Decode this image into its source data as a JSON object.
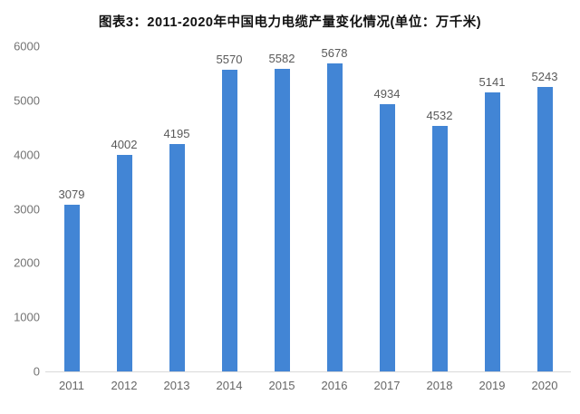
{
  "title": "图表3：2011-2020年中国电力电缆产量变化情况(单位：万千米)",
  "colors": {
    "bar": "#4285d5",
    "value_label": "#595959",
    "y_tick_label": "#737373",
    "x_tick_label": "#666666",
    "axis_line": "#d9d9d9",
    "title": "#111111",
    "background": "#ffffff"
  },
  "chart_data": {
    "type": "bar",
    "title": "图表3：2011-2020年中国电力电缆产量变化情况(单位：万千米)",
    "categories": [
      "2011",
      "2012",
      "2013",
      "2014",
      "2015",
      "2016",
      "2017",
      "2018",
      "2019",
      "2020"
    ],
    "values": [
      3079,
      4002,
      4195,
      5570,
      5582,
      5678,
      4934,
      4532,
      5141,
      5243
    ],
    "unit": "万千米",
    "xlabel": "",
    "ylabel": "",
    "ylim": [
      0,
      6000
    ],
    "y_ticks": [
      0,
      1000,
      2000,
      3000,
      4000,
      5000,
      6000
    ],
    "grid": false,
    "data_labels": true,
    "legend_position": "none"
  }
}
